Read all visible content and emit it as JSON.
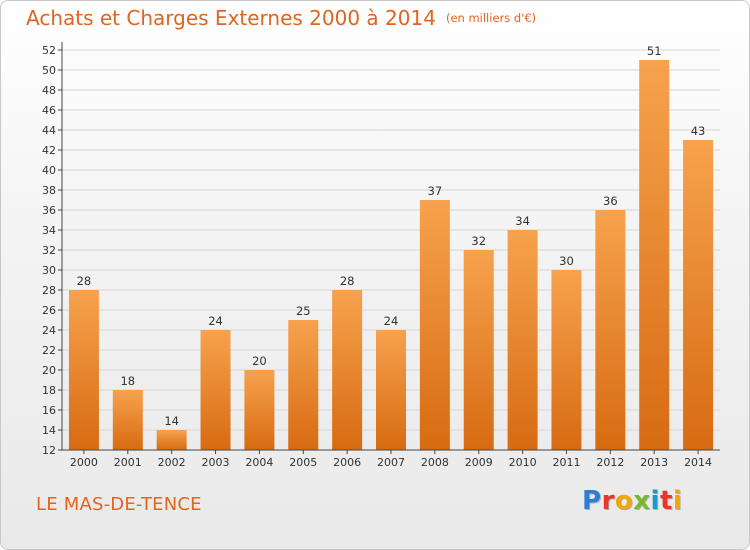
{
  "header": {
    "title": "Achats et Charges Externes 2000 à 2014",
    "unit": "(en milliers d'€)"
  },
  "footer": {
    "commune": "LE MAS-DE-TENCE",
    "logo_text": "Proxiti",
    "logo_colors": [
      "#2a7fd4",
      "#e8362a",
      "#f2a60c",
      "#7ab82e",
      "#1c98cc",
      "#e8362a",
      "#f2a60c"
    ]
  },
  "colors": {
    "bar_light": "#f7a24e",
    "bar_dark": "#d76b12",
    "title": "#e0651f",
    "grid": "#d6d6d6",
    "axis": "#444444"
  },
  "chart_data": {
    "type": "bar",
    "categories": [
      "2000",
      "2001",
      "2002",
      "2003",
      "2004",
      "2005",
      "2006",
      "2007",
      "2008",
      "2009",
      "2010",
      "2011",
      "2012",
      "2013",
      "2014"
    ],
    "values": [
      28,
      18,
      14,
      24,
      20,
      25,
      28,
      24,
      37,
      32,
      34,
      30,
      36,
      51,
      43
    ],
    "ylim": [
      12,
      52
    ],
    "ytick_step": 2,
    "grid": true,
    "legend": "none"
  }
}
